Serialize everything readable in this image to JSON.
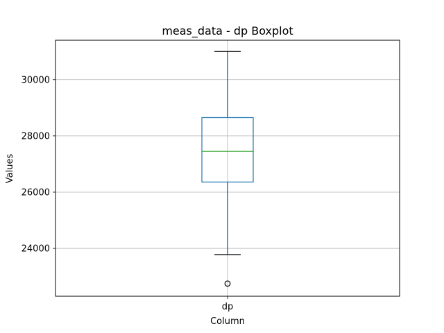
{
  "chart_data": {
    "type": "boxplot",
    "title": "meas_data - dp Boxplot",
    "xlabel": "Column",
    "ylabel": "Values",
    "categories": [
      "dp"
    ],
    "ylim": [
      22300,
      31400
    ],
    "y_ticks": [
      24000,
      26000,
      28000,
      30000
    ],
    "grid": true,
    "boxes": [
      {
        "category": "dp",
        "whisker_low": 23780,
        "q1": 26360,
        "median": 27450,
        "q3": 28650,
        "whisker_high": 31000,
        "outliers": [
          22750
        ]
      }
    ],
    "colors": {
      "box": "#1f77b4",
      "median": "#2ca02c",
      "cap": "#000000",
      "grid": "#b0b0b0"
    }
  }
}
